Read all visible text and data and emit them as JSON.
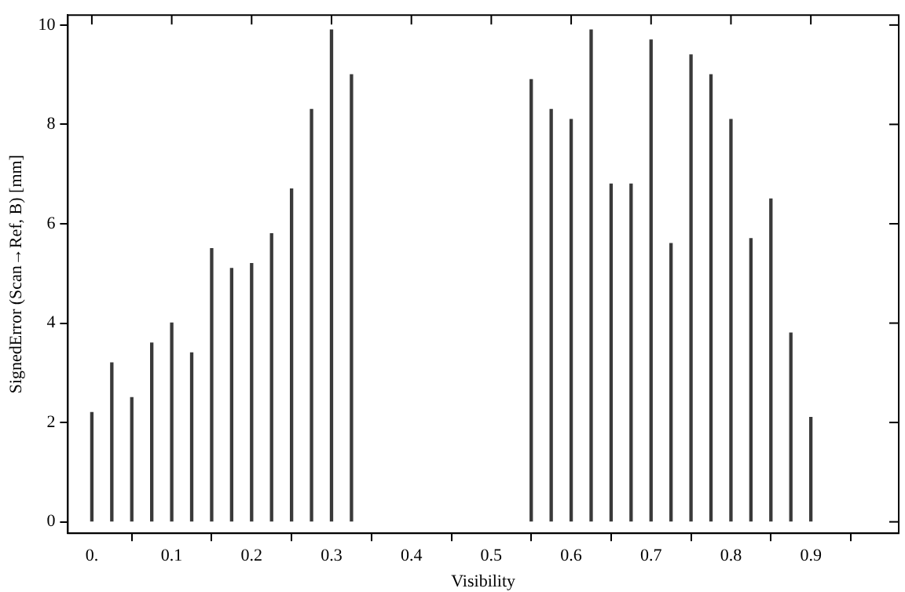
{
  "chart_data": {
    "type": "bar",
    "xlabel": "Visibility",
    "ylabel": "SignedError (Scan→Ref, B) [mm]",
    "x": [
      0,
      0.025,
      0.05,
      0.075,
      0.1,
      0.125,
      0.15,
      0.175,
      0.2,
      0.225,
      0.25,
      0.275,
      0.3,
      0.325,
      0.35,
      0.375,
      0.4,
      0.425,
      0.45,
      0.475,
      0.5,
      0.525,
      0.55,
      0.575,
      0.6,
      0.625,
      0.65,
      0.675,
      0.7,
      0.725,
      0.75,
      0.775,
      0.8,
      0.825,
      0.85,
      0.875,
      0.9
    ],
    "values": [
      2.2,
      3.2,
      2.5,
      3.6,
      4.0,
      3.4,
      5.5,
      5.1,
      5.2,
      5.8,
      6.7,
      8.3,
      9.9,
      9.0,
      null,
      null,
      null,
      null,
      null,
      null,
      null,
      null,
      8.9,
      8.3,
      8.1,
      9.9,
      6.8,
      6.8,
      9.7,
      5.6,
      9.4,
      9.0,
      8.1,
      5.7,
      6.5,
      3.8,
      2.1
    ],
    "color": "#3a3a3a",
    "xlim": [
      -0.03,
      1.01
    ],
    "xticks": [
      {
        "value": 0,
        "label": "0."
      },
      0.1,
      0.2,
      0.3,
      0.4,
      0.5,
      0.6,
      0.7,
      0.8,
      0.9
    ],
    "ylim": [
      -0.23,
      10.2
    ],
    "yticks": [
      0,
      2,
      4,
      6,
      8,
      10
    ],
    "grid": false,
    "legend": false
  }
}
